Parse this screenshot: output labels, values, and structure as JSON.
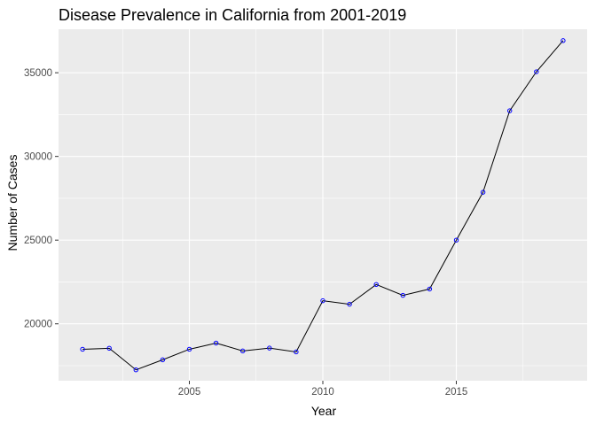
{
  "chart_data": {
    "type": "line",
    "title": "Disease Prevalence in California from 2001-2019",
    "xlabel": "Year",
    "ylabel": "Number of Cases",
    "xlim": [
      2000.1,
      2019.9
    ],
    "ylim": [
      16600,
      37600
    ],
    "x_ticks": [
      2005,
      2010,
      2015
    ],
    "x_minor_ticks": [
      2002.5,
      2007.5,
      2012.5,
      2017.5
    ],
    "y_ticks": [
      20000,
      25000,
      30000,
      35000
    ],
    "y_minor_ticks": [
      17500,
      22500,
      27500,
      32500
    ],
    "grid": true,
    "x": [
      2001,
      2002,
      2003,
      2004,
      2005,
      2006,
      2007,
      2008,
      2009,
      2010,
      2011,
      2012,
      2013,
      2014,
      2015,
      2016,
      2017,
      2018,
      2019
    ],
    "values": [
      18480,
      18540,
      17250,
      17850,
      18480,
      18850,
      18380,
      18550,
      18320,
      21380,
      21170,
      22350,
      21700,
      22080,
      25000,
      27860,
      32730,
      35060,
      36920
    ],
    "colors": {
      "panel": "#ebebeb",
      "grid_major": "#ffffff",
      "line": "#000000",
      "point_stroke": "#0000ff",
      "tick_text": "#4d4d4d",
      "tick_mark": "#333333"
    }
  }
}
